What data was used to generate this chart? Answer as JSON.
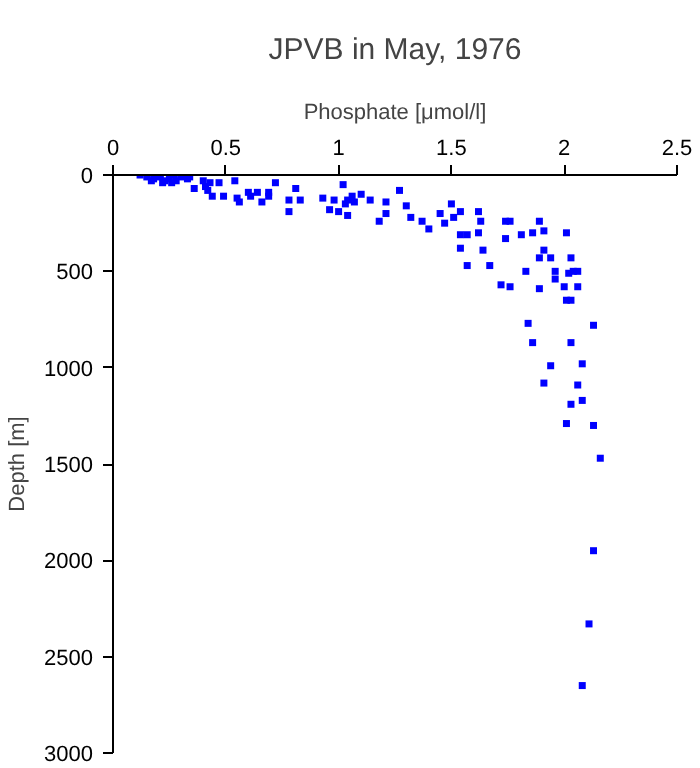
{
  "chart_data": {
    "type": "scatter",
    "title": "JPVB in May, 1976",
    "xlabel": "Phosphate [μmol/l]",
    "ylabel": "Depth [m]",
    "xlim": [
      0,
      2.5
    ],
    "xticks": [
      0,
      0.5,
      1,
      1.5,
      2,
      2.5
    ],
    "ylim": [
      3000,
      0
    ],
    "yticks": [
      0,
      500,
      1000,
      1500,
      2000,
      2500,
      3000
    ],
    "marker": "square",
    "series": [
      {
        "color": "#0000ff",
        "x": [
          0.12,
          0.15,
          0.18,
          0.21,
          0.23,
          0.25,
          0.27,
          0.28,
          0.3,
          0.33,
          0.34,
          0.22,
          0.17,
          0.26,
          0.36,
          0.4,
          0.41,
          0.42,
          0.43,
          0.44,
          0.47,
          0.49,
          0.54,
          0.55,
          0.56,
          0.6,
          0.61,
          0.64,
          0.66,
          0.69,
          0.69,
          0.72,
          0.78,
          0.78,
          0.81,
          0.83,
          0.93,
          0.96,
          0.98,
          1.0,
          1.02,
          1.03,
          1.04,
          1.04,
          1.06,
          1.07,
          1.1,
          1.14,
          1.18,
          1.21,
          1.21,
          1.27,
          1.3,
          1.32,
          1.37,
          1.4,
          1.45,
          1.47,
          1.5,
          1.51,
          1.54,
          1.54,
          1.57,
          1.54,
          1.57,
          1.62,
          1.62,
          1.63,
          1.64,
          1.67,
          1.72,
          1.74,
          1.74,
          1.76,
          1.76,
          1.81,
          1.83,
          1.84,
          1.86,
          1.89,
          1.89,
          1.89,
          1.91,
          1.91,
          1.94,
          1.96,
          1.96,
          2.0,
          2.01,
          2.01,
          2.02,
          2.03,
          2.03,
          2.04,
          2.06,
          2.06,
          2.13,
          1.86,
          2.03,
          1.94,
          2.08,
          1.91,
          2.06,
          2.03,
          2.08,
          2.01,
          2.13,
          2.16,
          2.13,
          2.11,
          2.08
        ],
        "values": [
          0,
          10,
          20,
          10,
          30,
          20,
          0,
          30,
          10,
          20,
          10,
          40,
          30,
          40,
          70,
          30,
          60,
          80,
          40,
          110,
          40,
          110,
          30,
          120,
          140,
          90,
          110,
          90,
          140,
          90,
          110,
          40,
          130,
          190,
          70,
          130,
          120,
          180,
          130,
          190,
          50,
          150,
          210,
          130,
          110,
          140,
          100,
          130,
          240,
          140,
          200,
          80,
          160,
          220,
          240,
          280,
          200,
          250,
          150,
          220,
          190,
          310,
          310,
          380,
          470,
          190,
          300,
          240,
          390,
          470,
          570,
          240,
          330,
          240,
          580,
          310,
          500,
          770,
          300,
          240,
          590,
          430,
          390,
          290,
          430,
          500,
          540,
          580,
          650,
          300,
          510,
          430,
          650,
          500,
          500,
          580,
          780,
          870,
          870,
          990,
          980,
          1080,
          1090,
          1190,
          1170,
          1290,
          1300,
          1470,
          1950,
          2330,
          2650
        ]
      }
    ]
  }
}
